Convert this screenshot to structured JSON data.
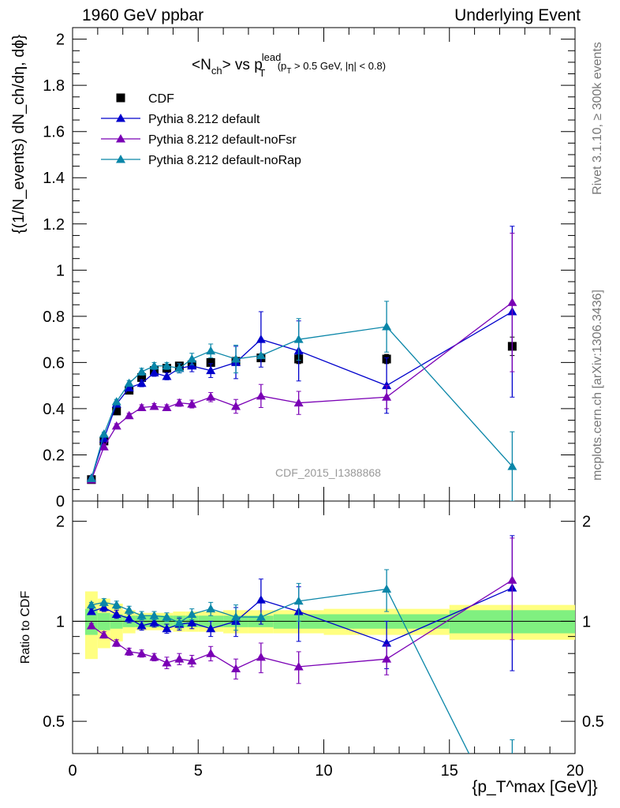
{
  "header": {
    "left": "1960 GeV ppbar",
    "right": "Underlying Event"
  },
  "plot_title": {
    "main": "<N",
    "ch": "ch",
    "vs": "> vs p",
    "lead": "lead",
    "T": "T",
    "cuts_1": " (p",
    "cuts_T": "T",
    "cuts_2": " > 0.5 GeV, |η| < 0.8)"
  },
  "watermark": "CDF_2015_I1388868",
  "side_labels": {
    "rivet": "Rivet 3.1.10, ≥ 300k events",
    "mcplots": "mcplots.cern.ch [arXiv:1306.3436]"
  },
  "legend": [
    {
      "label": "CDF",
      "color": "#000000",
      "marker": "square"
    },
    {
      "label": "Pythia 8.212 default",
      "color": "#0000cc",
      "marker": "triangle"
    },
    {
      "label": "Pythia 8.212 default-noFsr",
      "color": "#7a00b5",
      "marker": "triangle"
    },
    {
      "label": "Pythia 8.212 default-noRap",
      "color": "#0a86a8",
      "marker": "triangle"
    }
  ],
  "axes": {
    "ylabel_main": "{(1/N_events) dN_ch/dη, dϕ}",
    "ylabel_ratio": "Ratio to CDF",
    "xlabel": "{p_T^max [GeV]}"
  },
  "chart_data": {
    "type": "scatter",
    "xlim": [
      0,
      20
    ],
    "ylim_main": [
      0,
      2.05
    ],
    "ylim_ratio": [
      0.4,
      2.3
    ],
    "ratio_scale": "log",
    "x_ticks": [
      0,
      5,
      10,
      15,
      20
    ],
    "x_tick_labels": [
      "0",
      "5",
      "10",
      "15",
      "20"
    ],
    "y_ticks_main": [
      0,
      0.2,
      0.4,
      0.6,
      0.8,
      1,
      1.2,
      1.4,
      1.6,
      1.8,
      2
    ],
    "y_tick_labels_main": [
      "0",
      "0.2",
      "0.4",
      "0.6",
      "0.8",
      "1",
      "1.2",
      "1.4",
      "1.6",
      "1.8",
      "2"
    ],
    "y_ticks_ratio": [
      0.5,
      1,
      2
    ],
    "y_tick_labels_ratio": [
      "0.5",
      "1",
      "2"
    ],
    "x": [
      0.75,
      1.25,
      1.75,
      2.25,
      2.75,
      3.25,
      3.75,
      4.25,
      4.75,
      5.5,
      6.5,
      7.5,
      9.0,
      12.5,
      17.5
    ],
    "x_bins": [
      [
        0.5,
        1.0
      ],
      [
        1.0,
        1.5
      ],
      [
        1.5,
        2.0
      ],
      [
        2.0,
        2.5
      ],
      [
        2.5,
        3.0
      ],
      [
        3.0,
        3.5
      ],
      [
        3.5,
        4.0
      ],
      [
        4.0,
        4.5
      ],
      [
        4.5,
        5.0
      ],
      [
        5.0,
        6.0
      ],
      [
        6.0,
        7.0
      ],
      [
        7.0,
        8.0
      ],
      [
        8.0,
        10.0
      ],
      [
        10.0,
        15.0
      ],
      [
        15.0,
        20.0
      ]
    ],
    "band_stat": [
      0.09,
      0.06,
      0.05,
      0.04,
      0.04,
      0.04,
      0.04,
      0.04,
      0.04,
      0.04,
      0.04,
      0.04,
      0.05,
      0.05,
      0.08
    ],
    "band_total": [
      0.23,
      0.17,
      0.13,
      0.08,
      0.06,
      0.06,
      0.06,
      0.07,
      0.07,
      0.07,
      0.08,
      0.08,
      0.08,
      0.09,
      0.12
    ],
    "series": [
      {
        "name": "CDF",
        "color": "#000000",
        "marker": "square",
        "y": [
          0.093,
          0.26,
          0.39,
          0.48,
          0.535,
          0.565,
          0.575,
          0.585,
          0.59,
          0.6,
          0.605,
          0.62,
          0.615,
          0.615,
          0.67
        ],
        "yerr": [
          0.01,
          0.012,
          0.012,
          0.012,
          0.012,
          0.012,
          0.012,
          0.012,
          0.012,
          0.012,
          0.012,
          0.015,
          0.02,
          0.02,
          0.04
        ]
      },
      {
        "name": "Pythia 8.212 default",
        "color": "#0000cc",
        "marker": "triangle",
        "y": [
          0.1,
          0.27,
          0.42,
          0.49,
          0.51,
          0.555,
          0.54,
          0.575,
          0.585,
          0.565,
          0.6,
          0.7,
          0.65,
          0.5,
          0.82
        ],
        "yerr": [
          0.005,
          0.008,
          0.01,
          0.012,
          0.015,
          0.015,
          0.015,
          0.02,
          0.025,
          0.03,
          0.07,
          0.12,
          0.13,
          0.12,
          0.37
        ],
        "ratio": [
          1.07,
          1.1,
          1.05,
          1.02,
          0.97,
          0.99,
          0.95,
          0.98,
          0.99,
          0.95,
          1.0,
          1.16,
          1.07,
          0.86,
          1.26
        ],
        "ratio_err": [
          0.02,
          0.03,
          0.03,
          0.03,
          0.03,
          0.03,
          0.03,
          0.04,
          0.04,
          0.05,
          0.1,
          0.18,
          0.2,
          0.14,
          0.55
        ]
      },
      {
        "name": "Pythia 8.212 default-noFsr",
        "color": "#7a00b5",
        "marker": "triangle",
        "y": [
          0.092,
          0.235,
          0.325,
          0.37,
          0.405,
          0.41,
          0.405,
          0.425,
          0.42,
          0.45,
          0.41,
          0.455,
          0.425,
          0.45,
          0.86
        ],
        "yerr": [
          0.005,
          0.008,
          0.01,
          0.01,
          0.012,
          0.012,
          0.012,
          0.015,
          0.017,
          0.02,
          0.03,
          0.05,
          0.05,
          0.05,
          0.3
        ],
        "ratio": [
          0.97,
          0.91,
          0.86,
          0.81,
          0.8,
          0.78,
          0.75,
          0.77,
          0.76,
          0.8,
          0.72,
          0.78,
          0.73,
          0.77,
          1.33
        ],
        "ratio_err": [
          0.015,
          0.02,
          0.02,
          0.02,
          0.02,
          0.02,
          0.03,
          0.03,
          0.03,
          0.04,
          0.05,
          0.08,
          0.08,
          0.08,
          0.45
        ]
      },
      {
        "name": "Pythia 8.212 default-noRap",
        "color": "#0a86a8",
        "marker": "triangle",
        "y": [
          0.098,
          0.29,
          0.43,
          0.51,
          0.56,
          0.585,
          0.585,
          0.575,
          0.615,
          0.65,
          0.615,
          0.63,
          0.7,
          0.755,
          0.15
        ],
        "yerr": [
          0.005,
          0.008,
          0.01,
          0.012,
          0.015,
          0.015,
          0.015,
          0.02,
          0.025,
          0.03,
          0.06,
          0.0,
          0.09,
          0.11,
          0.15
        ],
        "ratio": [
          1.12,
          1.14,
          1.12,
          1.08,
          1.04,
          1.04,
          1.03,
          0.99,
          1.05,
          1.09,
          1.03,
          1.03,
          1.15,
          1.25,
          0.22
        ],
        "ratio_err": [
          0.02,
          0.03,
          0.03,
          0.03,
          0.03,
          0.03,
          0.03,
          0.04,
          0.04,
          0.05,
          0.09,
          0.0,
          0.15,
          0.18,
          0.22
        ]
      }
    ]
  }
}
